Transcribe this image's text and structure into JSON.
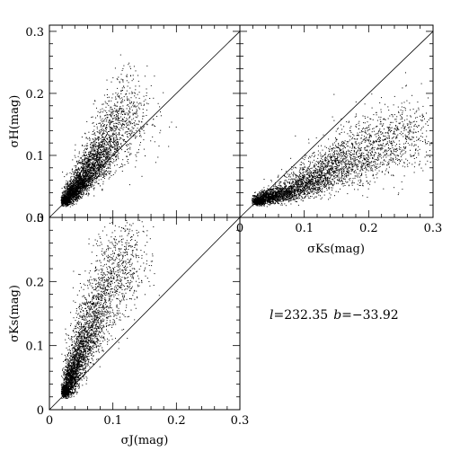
{
  "chart_data": [
    {
      "id": "h_vs_j",
      "type": "scatter",
      "title": "",
      "xlabel": "",
      "ylabel": "σH(mag)",
      "xlim": [
        0,
        0.3
      ],
      "ylim": [
        0,
        0.31
      ],
      "yticks": [
        "0",
        "0.1",
        "0.2",
        "0.3"
      ],
      "xticks": [],
      "reference_line": "y = x",
      "cloud": [
        {
          "x": 0.025,
          "y": 0.028,
          "sx": 0.004,
          "sy": 0.004,
          "n": 700
        },
        {
          "x": 0.035,
          "y": 0.04,
          "sx": 0.006,
          "sy": 0.007,
          "n": 650
        },
        {
          "x": 0.047,
          "y": 0.055,
          "sx": 0.008,
          "sy": 0.009,
          "n": 600
        },
        {
          "x": 0.06,
          "y": 0.075,
          "sx": 0.01,
          "sy": 0.012,
          "n": 550
        },
        {
          "x": 0.075,
          "y": 0.095,
          "sx": 0.012,
          "sy": 0.016,
          "n": 500
        },
        {
          "x": 0.09,
          "y": 0.12,
          "sx": 0.014,
          "sy": 0.022,
          "n": 380
        },
        {
          "x": 0.105,
          "y": 0.15,
          "sx": 0.016,
          "sy": 0.028,
          "n": 280
        },
        {
          "x": 0.125,
          "y": 0.18,
          "sx": 0.016,
          "sy": 0.035,
          "n": 200
        },
        {
          "x": 0.14,
          "y": 0.155,
          "sx": 0.025,
          "sy": 0.03,
          "n": 90
        }
      ]
    },
    {
      "id": "h_vs_ks",
      "type": "scatter",
      "title": "",
      "xlabel": "σKs(mag)",
      "ylabel": "",
      "xlim": [
        0,
        0.3
      ],
      "ylim": [
        0,
        0.31
      ],
      "xticks": [
        "0",
        "0.1",
        "0.2",
        "0.3"
      ],
      "yticks": [],
      "reference_line": "y = x",
      "cloud": [
        {
          "x": 0.028,
          "y": 0.027,
          "sx": 0.005,
          "sy": 0.003,
          "n": 600
        },
        {
          "x": 0.045,
          "y": 0.033,
          "sx": 0.01,
          "sy": 0.005,
          "n": 650
        },
        {
          "x": 0.07,
          "y": 0.04,
          "sx": 0.014,
          "sy": 0.007,
          "n": 600
        },
        {
          "x": 0.1,
          "y": 0.055,
          "sx": 0.017,
          "sy": 0.01,
          "n": 550
        },
        {
          "x": 0.13,
          "y": 0.072,
          "sx": 0.02,
          "sy": 0.015,
          "n": 500
        },
        {
          "x": 0.16,
          "y": 0.09,
          "sx": 0.022,
          "sy": 0.02,
          "n": 450
        },
        {
          "x": 0.195,
          "y": 0.11,
          "sx": 0.025,
          "sy": 0.025,
          "n": 400
        },
        {
          "x": 0.23,
          "y": 0.125,
          "sx": 0.025,
          "sy": 0.028,
          "n": 320
        },
        {
          "x": 0.265,
          "y": 0.135,
          "sx": 0.02,
          "sy": 0.03,
          "n": 180
        }
      ]
    },
    {
      "id": "ks_vs_j",
      "type": "scatter",
      "title": "",
      "xlabel": "σJ(mag)",
      "ylabel": "σKs(mag)",
      "xlim": [
        0,
        0.3
      ],
      "ylim": [
        0,
        0.3
      ],
      "xticks": [
        "0",
        "0.1",
        "0.2",
        "0.3"
      ],
      "yticks": [
        "0",
        "0.1",
        "0.2",
        "0.3"
      ],
      "reference_line": "y = x",
      "cloud": [
        {
          "x": 0.025,
          "y": 0.03,
          "sx": 0.004,
          "sy": 0.005,
          "n": 600
        },
        {
          "x": 0.033,
          "y": 0.05,
          "sx": 0.006,
          "sy": 0.01,
          "n": 600
        },
        {
          "x": 0.043,
          "y": 0.075,
          "sx": 0.008,
          "sy": 0.014,
          "n": 550
        },
        {
          "x": 0.055,
          "y": 0.105,
          "sx": 0.01,
          "sy": 0.018,
          "n": 500
        },
        {
          "x": 0.068,
          "y": 0.14,
          "sx": 0.013,
          "sy": 0.024,
          "n": 450
        },
        {
          "x": 0.085,
          "y": 0.18,
          "sx": 0.016,
          "sy": 0.03,
          "n": 380
        },
        {
          "x": 0.105,
          "y": 0.22,
          "sx": 0.018,
          "sy": 0.035,
          "n": 300
        },
        {
          "x": 0.125,
          "y": 0.24,
          "sx": 0.02,
          "sy": 0.035,
          "n": 220
        }
      ]
    }
  ],
  "annotation": {
    "l_symbol": "l",
    "l_value": "=232.35",
    "b_symbol": "b",
    "b_value": "=−33.92"
  }
}
